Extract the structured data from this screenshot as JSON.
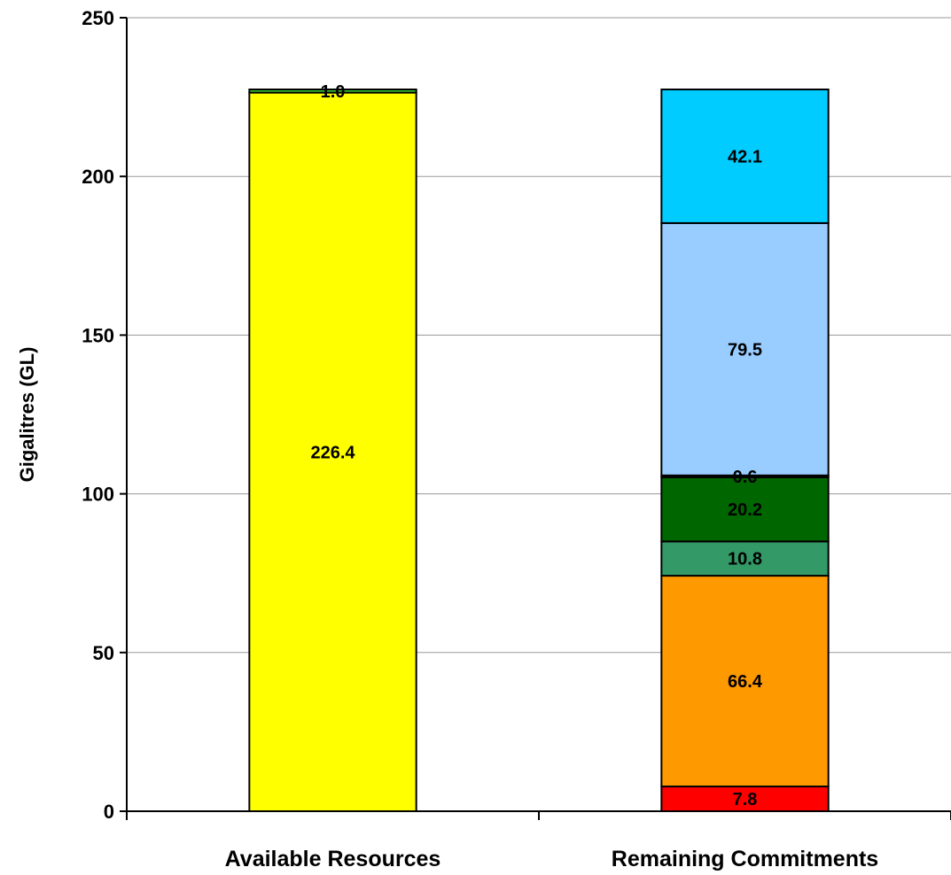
{
  "chart_data": {
    "type": "bar",
    "stacked": true,
    "ylabel": "Gigalitres (GL)",
    "ylim": [
      0,
      250
    ],
    "yticks": [
      "0",
      "50",
      "100",
      "150",
      "200",
      "250"
    ],
    "grid": true,
    "categories": [
      "Available Resources",
      "Remaining Commitments"
    ],
    "bars": [
      {
        "category": "Available Resources",
        "segments": [
          {
            "value": 226.4,
            "label": "226.4",
            "color": "#FFFF00"
          },
          {
            "value": 1.0,
            "label": "1.0",
            "color": "#33CC33"
          }
        ]
      },
      {
        "category": "Remaining Commitments",
        "segments": [
          {
            "value": 7.8,
            "label": "7.8",
            "color": "#FF0000"
          },
          {
            "value": 66.4,
            "label": "66.4",
            "color": "#FF9900"
          },
          {
            "value": 10.8,
            "label": "10.8",
            "color": "#339966"
          },
          {
            "value": 20.2,
            "label": "20.2",
            "color": "#006600"
          },
          {
            "value": 0.6,
            "label": "0.6",
            "color": "#000000"
          },
          {
            "value": 79.5,
            "label": "79.5",
            "color": "#99CCFF"
          },
          {
            "value": 42.1,
            "label": "42.1",
            "color": "#00CCFF"
          }
        ]
      }
    ]
  }
}
